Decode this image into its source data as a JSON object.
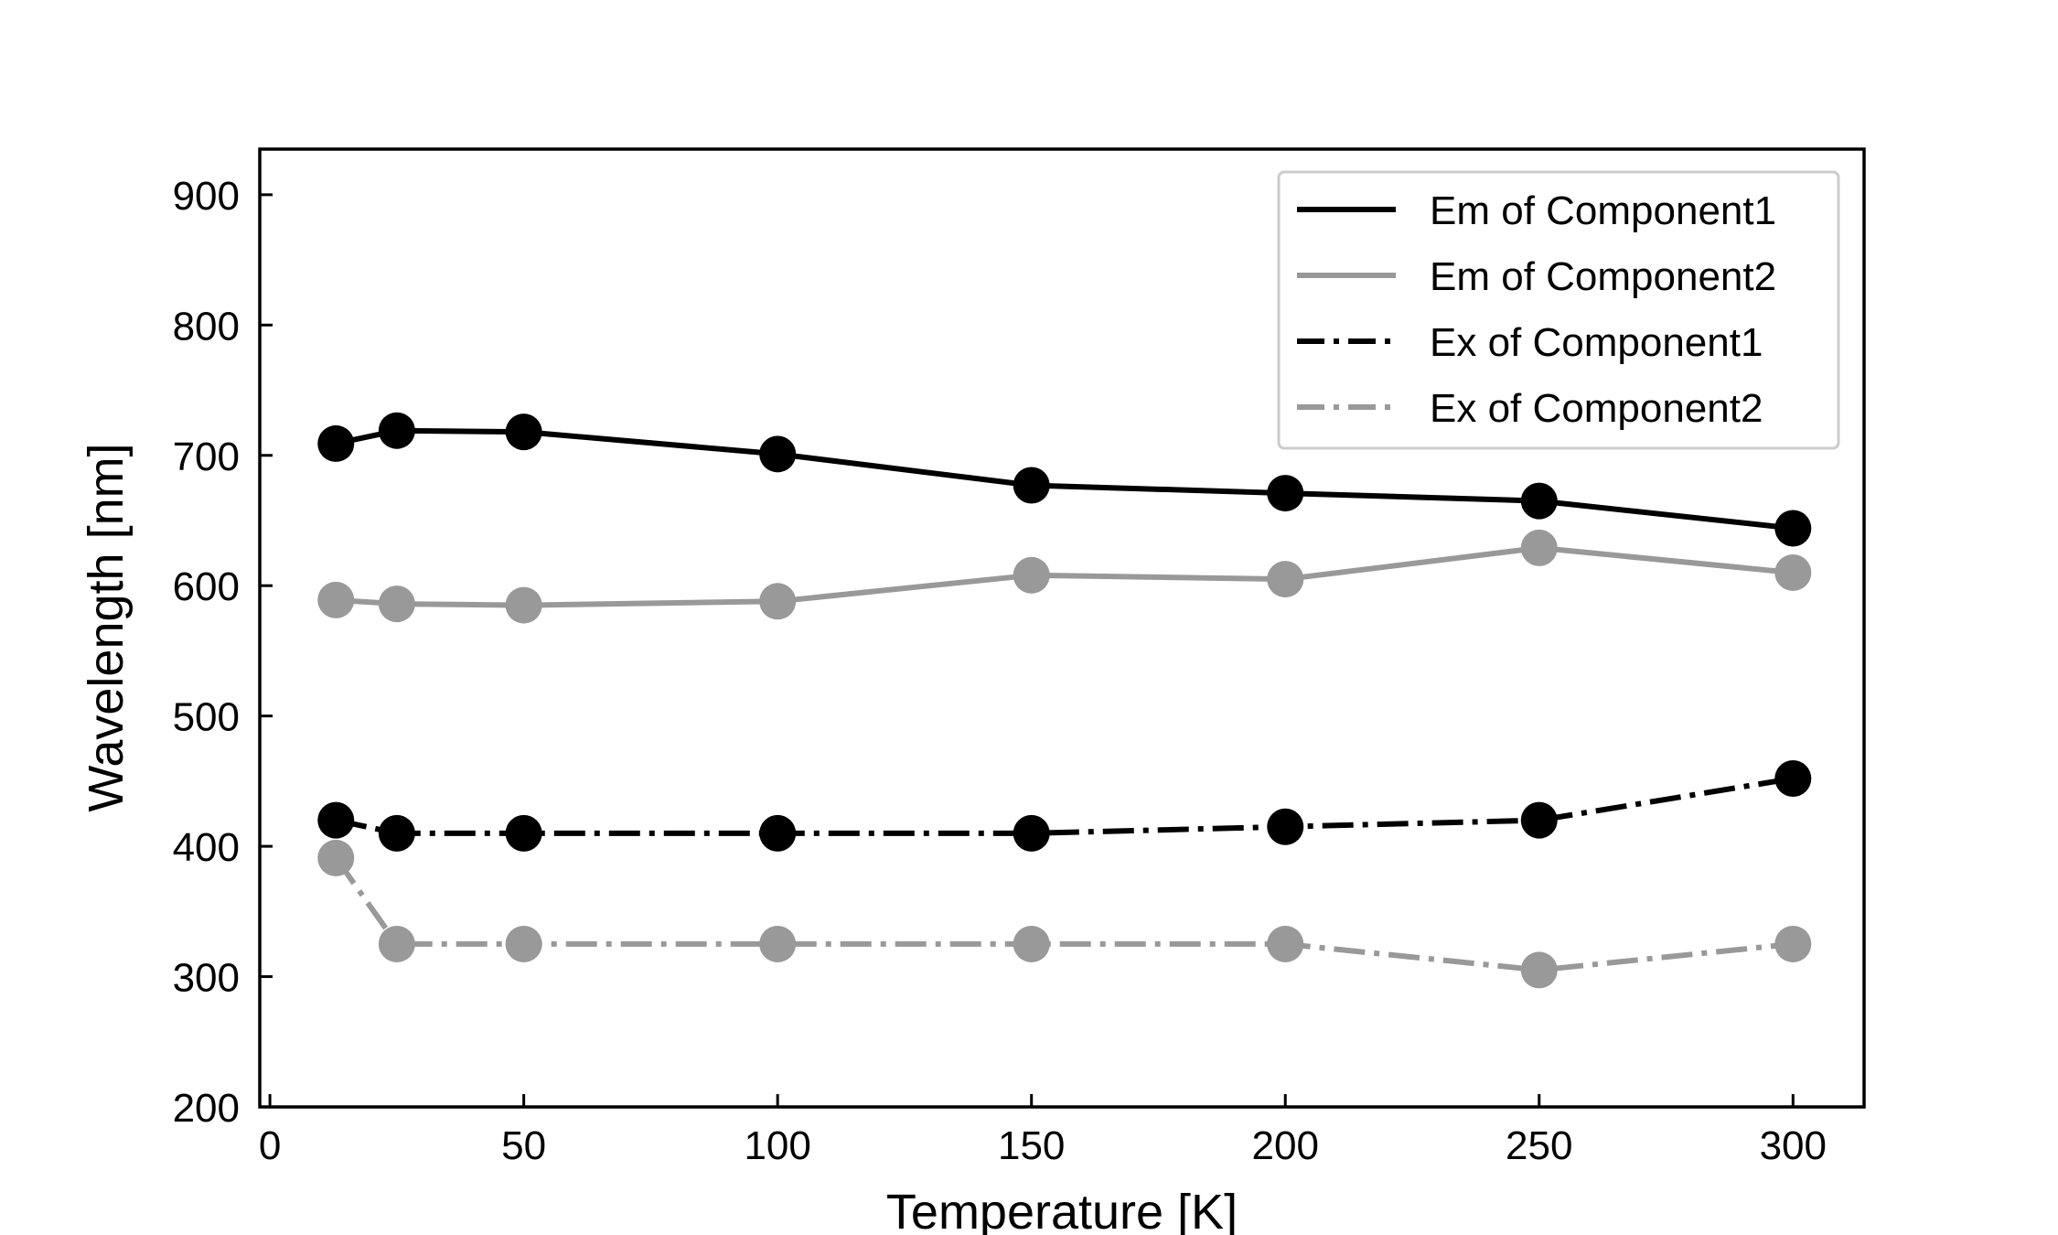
{
  "chart_data": {
    "type": "line",
    "xlabel": "Temperature [K]",
    "ylabel": "Wavelength [nm]",
    "xlim": [
      -2,
      314
    ],
    "ylim": [
      200,
      935
    ],
    "xticks": [
      0,
      50,
      100,
      150,
      200,
      250,
      300
    ],
    "yticks": [
      200,
      300,
      400,
      500,
      600,
      700,
      800,
      900
    ],
    "grid": false,
    "legend_position": "top-right",
    "x": [
      13,
      25,
      50,
      100,
      150,
      200,
      250,
      300
    ],
    "series": [
      {
        "name": "Em of Component1",
        "color": "#000000",
        "line_style": "solid",
        "values": [
          709,
          719,
          718,
          701,
          677,
          671,
          665,
          644
        ]
      },
      {
        "name": "Em of Component2",
        "color": "#999999",
        "line_style": "solid",
        "values": [
          589,
          586,
          585,
          588,
          608,
          605,
          629,
          610
        ]
      },
      {
        "name": "Ex of Component1",
        "color": "#000000",
        "line_style": "dash-dot",
        "values": [
          420,
          410,
          410,
          410,
          410,
          415,
          420,
          452
        ]
      },
      {
        "name": "Ex of Component2",
        "color": "#999999",
        "line_style": "dash-dot",
        "values": [
          391,
          325,
          325,
          325,
          325,
          325,
          305,
          325
        ]
      }
    ]
  }
}
